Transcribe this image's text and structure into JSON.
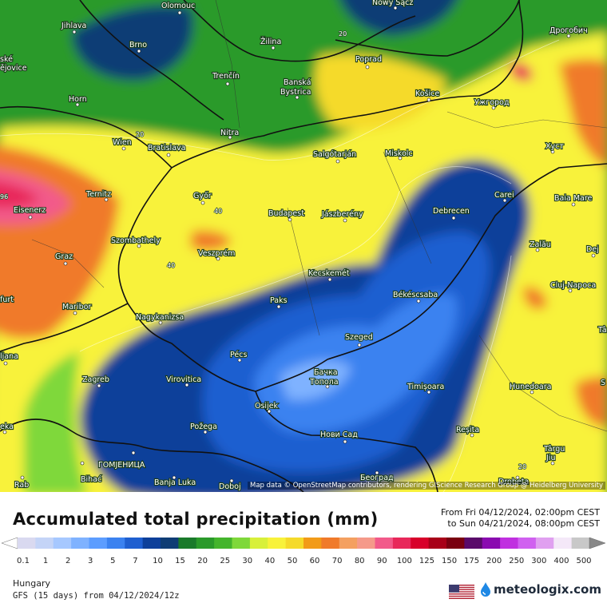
{
  "map": {
    "region": "Hungary",
    "attribution": "Map data © OpenStreetMap contributors, rendering GIScience Research Group @ Heidelberg University",
    "cities": [
      {
        "name": "Olomouc"
      },
      {
        "name": "Nowy Sącz"
      },
      {
        "name": "Jihlava"
      },
      {
        "name": "Brno"
      },
      {
        "name": "Žilina"
      },
      {
        "name": "Poprad"
      },
      {
        "name": "Дрогобич"
      },
      {
        "name": "ské"
      },
      {
        "name": "ějovice"
      },
      {
        "name": "Trenčín"
      },
      {
        "name": "Banská"
      },
      {
        "name": "Bystrica"
      },
      {
        "name": "Košice"
      },
      {
        "name": "Ужгород"
      },
      {
        "name": "Horn"
      },
      {
        "name": "Nitra"
      },
      {
        "name": "Wien"
      },
      {
        "name": "Bratislava"
      },
      {
        "name": "Salgótarján"
      },
      {
        "name": "Miskolc"
      },
      {
        "name": "Хуст"
      },
      {
        "name": "Ternitz"
      },
      {
        "name": "Győr"
      },
      {
        "name": "Carei"
      },
      {
        "name": "Baia Mare"
      },
      {
        "name": "Eisenerz"
      },
      {
        "name": "Budapest"
      },
      {
        "name": "Jászberény"
      },
      {
        "name": "Debrecen"
      },
      {
        "name": "Szombathely"
      },
      {
        "name": "Zalău"
      },
      {
        "name": "Graz"
      },
      {
        "name": "Veszprém"
      },
      {
        "name": "Dej"
      },
      {
        "name": "Kecskemét"
      },
      {
        "name": "Cluj-Napoca"
      },
      {
        "name": "furt"
      },
      {
        "name": "Maribor"
      },
      {
        "name": "Paks"
      },
      {
        "name": "Békéscsaba"
      },
      {
        "name": "Nagykanizsa"
      },
      {
        "name": "Tâ"
      },
      {
        "name": "Szeged"
      },
      {
        "name": "ljana"
      },
      {
        "name": "Pécs"
      },
      {
        "name": "Бачка"
      },
      {
        "name": "Топола"
      },
      {
        "name": "Zagreb"
      },
      {
        "name": "Virovitica"
      },
      {
        "name": "Timișoara"
      },
      {
        "name": "Hunedoara"
      },
      {
        "name": "S"
      },
      {
        "name": "Osijek"
      },
      {
        "name": "eka"
      },
      {
        "name": "Požega"
      },
      {
        "name": "Reșita"
      },
      {
        "name": "Нови Сад"
      },
      {
        "name": "Târgu"
      },
      {
        "name": "Jiu"
      },
      {
        "name": "ГОМЈЕНИЦА"
      },
      {
        "name": "Bihać"
      },
      {
        "name": "Rab"
      },
      {
        "name": "Banja Luka"
      },
      {
        "name": "Doboj"
      },
      {
        "name": "Београд"
      },
      {
        "name": "Drobeta"
      }
    ],
    "contour_labels": [
      "20",
      "20",
      "40",
      "40",
      "96",
      "20"
    ]
  },
  "header": {
    "title": "Accumulated total precipitation (mm)",
    "from_line": "From Fri 04/12/2024, 02:00pm CEST",
    "to_line": "to Sun 04/21/2024, 08:00pm CEST"
  },
  "legend": {
    "unit": "mm",
    "colors": [
      "#d9d9f0",
      "#c4d4f7",
      "#a6c8ff",
      "#7fb2ff",
      "#5c9dff",
      "#3b82f0",
      "#1f5fd0",
      "#0d3f9a",
      "#0f3d75",
      "#1a7a2a",
      "#2a9a2a",
      "#44b52c",
      "#7fd83a",
      "#d8f03a",
      "#f8f23a",
      "#f5da2a",
      "#f29b18",
      "#f07a2a",
      "#f4a060",
      "#f59a8a",
      "#f25a8a",
      "#e8285a",
      "#d8002a",
      "#a80018",
      "#7a0010",
      "#5a0a6a",
      "#8a0ab0",
      "#c030e0",
      "#d060f0",
      "#e0a0f0",
      "#f4e8f8",
      "#c8c8c8"
    ],
    "labels": [
      "0.1",
      "1",
      "2",
      "3",
      "5",
      "7",
      "10",
      "15",
      "20",
      "25",
      "30",
      "40",
      "50",
      "60",
      "70",
      "80",
      "90",
      "100",
      "125",
      "150",
      "175",
      "200",
      "250",
      "300",
      "400",
      "500"
    ]
  },
  "footer": {
    "region": "Hungary",
    "model_line": "GFS (15 days) from 04/12/2024/12z",
    "brand": "meteologix.com"
  }
}
